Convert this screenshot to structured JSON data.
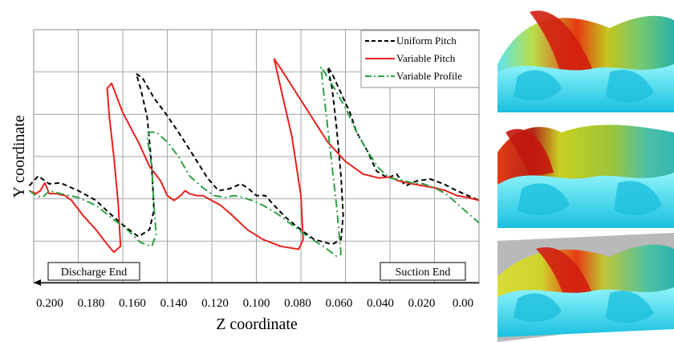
{
  "chart_data": {
    "type": "line",
    "xlabel": "Z coordinate",
    "ylabel": "Y coordinate",
    "xlim": [
      0.2,
      0.0
    ],
    "x_ticks": [
      "0.200",
      "0.180",
      "0.160",
      "0.140",
      "0.120",
      "0.100",
      "0.080",
      "0.060",
      "0.040",
      "0.020",
      "0.00"
    ],
    "y_ticks_visible": false,
    "grid": true,
    "legend": "top-right",
    "annotations": {
      "left": "Discharge End",
      "right": "Suction End"
    },
    "series": [
      {
        "name": "Uniform Pitch",
        "color": "#000000",
        "dash": "dashed",
        "points": [
          [
            0.202,
            0.0
          ],
          [
            0.198,
            0.1
          ],
          [
            0.193,
            0.02
          ],
          [
            0.188,
            0.03
          ],
          [
            0.18,
            -0.05
          ],
          [
            0.172,
            -0.15
          ],
          [
            0.166,
            -0.28
          ],
          [
            0.16,
            -0.4
          ],
          [
            0.153,
            -0.52
          ],
          [
            0.148,
            -0.45
          ],
          [
            0.146,
            -0.25
          ],
          [
            0.147,
            0.2
          ],
          [
            0.149,
            0.7
          ],
          [
            0.152,
            1.0
          ],
          [
            0.154,
            1.15
          ],
          [
            0.151,
            1.1
          ],
          [
            0.146,
            0.9
          ],
          [
            0.141,
            0.75
          ],
          [
            0.135,
            0.55
          ],
          [
            0.128,
            0.3
          ],
          [
            0.122,
            0.08
          ],
          [
            0.117,
            -0.05
          ],
          [
            0.112,
            -0.03
          ],
          [
            0.107,
            0.02
          ],
          [
            0.104,
            -0.02
          ],
          [
            0.1,
            -0.1
          ],
          [
            0.096,
            -0.1
          ],
          [
            0.092,
            -0.2
          ],
          [
            0.087,
            -0.32
          ],
          [
            0.08,
            -0.45
          ],
          [
            0.074,
            -0.55
          ],
          [
            0.066,
            -0.6
          ],
          [
            0.062,
            -0.55
          ],
          [
            0.061,
            -0.3
          ],
          [
            0.062,
            0.1
          ],
          [
            0.064,
            0.6
          ],
          [
            0.066,
            1.0
          ],
          [
            0.068,
            1.22
          ],
          [
            0.066,
            1.15
          ],
          [
            0.062,
            0.95
          ],
          [
            0.058,
            0.75
          ],
          [
            0.055,
            0.55
          ],
          [
            0.05,
            0.35
          ],
          [
            0.046,
            0.15
          ],
          [
            0.041,
            0.08
          ],
          [
            0.037,
            0.12
          ],
          [
            0.033,
            0.0
          ],
          [
            0.028,
            0.05
          ],
          [
            0.022,
            0.07
          ],
          [
            0.016,
            0.02
          ],
          [
            0.01,
            -0.05
          ],
          [
            0.005,
            -0.1
          ],
          [
            0.0,
            -0.15
          ]
        ]
      },
      {
        "name": "Variable Pitch",
        "color": "#e8211c",
        "dash": "solid",
        "points": [
          [
            0.202,
            -0.05
          ],
          [
            0.199,
            -0.08
          ],
          [
            0.197,
            -0.05
          ],
          [
            0.195,
            0.03
          ],
          [
            0.193,
            -0.08
          ],
          [
            0.19,
            -0.08
          ],
          [
            0.186,
            -0.1
          ],
          [
            0.183,
            -0.15
          ],
          [
            0.178,
            -0.3
          ],
          [
            0.172,
            -0.45
          ],
          [
            0.167,
            -0.6
          ],
          [
            0.164,
            -0.68
          ],
          [
            0.161,
            -0.62
          ],
          [
            0.162,
            -0.2
          ],
          [
            0.164,
            0.3
          ],
          [
            0.166,
            0.7
          ],
          [
            0.167,
            1.0
          ],
          [
            0.165,
            1.05
          ],
          [
            0.16,
            0.75
          ],
          [
            0.153,
            0.45
          ],
          [
            0.148,
            0.2
          ],
          [
            0.143,
            0.05
          ],
          [
            0.14,
            -0.1
          ],
          [
            0.137,
            -0.15
          ],
          [
            0.134,
            -0.1
          ],
          [
            0.132,
            -0.05
          ],
          [
            0.13,
            -0.08
          ],
          [
            0.127,
            -0.1
          ],
          [
            0.124,
            -0.1
          ],
          [
            0.12,
            -0.15
          ],
          [
            0.116,
            -0.2
          ],
          [
            0.111,
            -0.3
          ],
          [
            0.104,
            -0.45
          ],
          [
            0.097,
            -0.55
          ],
          [
            0.089,
            -0.62
          ],
          [
            0.081,
            -0.65
          ],
          [
            0.079,
            -0.55
          ],
          [
            0.08,
            -0.1
          ],
          [
            0.084,
            0.5
          ],
          [
            0.089,
            1.0
          ],
          [
            0.092,
            1.3
          ],
          [
            0.089,
            1.2
          ],
          [
            0.082,
            0.95
          ],
          [
            0.075,
            0.7
          ],
          [
            0.068,
            0.45
          ],
          [
            0.06,
            0.25
          ],
          [
            0.052,
            0.12
          ],
          [
            0.045,
            0.08
          ],
          [
            0.04,
            0.09
          ],
          [
            0.036,
            0.05
          ],
          [
            0.03,
            0.02
          ],
          [
            0.025,
            0.0
          ],
          [
            0.02,
            -0.02
          ],
          [
            0.015,
            -0.05
          ],
          [
            0.01,
            -0.1
          ],
          [
            0.005,
            -0.12
          ],
          [
            0.0,
            -0.15
          ]
        ]
      },
      {
        "name": "Variable Profile",
        "color": "#2ea043",
        "dash": "dashdot",
        "points": [
          [
            0.202,
            -0.05
          ],
          [
            0.199,
            -0.1
          ],
          [
            0.196,
            -0.12
          ],
          [
            0.193,
            -0.05
          ],
          [
            0.188,
            -0.08
          ],
          [
            0.18,
            -0.12
          ],
          [
            0.172,
            -0.2
          ],
          [
            0.165,
            -0.33
          ],
          [
            0.158,
            -0.45
          ],
          [
            0.152,
            -0.58
          ],
          [
            0.147,
            -0.62
          ],
          [
            0.145,
            -0.5
          ],
          [
            0.146,
            -0.2
          ],
          [
            0.147,
            0.2
          ],
          [
            0.149,
            0.5
          ],
          [
            0.148,
            0.55
          ],
          [
            0.145,
            0.55
          ],
          [
            0.14,
            0.45
          ],
          [
            0.135,
            0.3
          ],
          [
            0.13,
            0.1
          ],
          [
            0.124,
            -0.02
          ],
          [
            0.119,
            -0.1
          ],
          [
            0.114,
            -0.12
          ],
          [
            0.11,
            -0.1
          ],
          [
            0.106,
            -0.12
          ],
          [
            0.102,
            -0.15
          ],
          [
            0.097,
            -0.2
          ],
          [
            0.091,
            -0.28
          ],
          [
            0.084,
            -0.4
          ],
          [
            0.077,
            -0.52
          ],
          [
            0.07,
            -0.62
          ],
          [
            0.064,
            -0.72
          ],
          [
            0.062,
            -0.7
          ],
          [
            0.064,
            -0.2
          ],
          [
            0.067,
            0.4
          ],
          [
            0.07,
            1.0
          ],
          [
            0.071,
            1.22
          ],
          [
            0.069,
            1.15
          ],
          [
            0.065,
            1.0
          ],
          [
            0.06,
            0.8
          ],
          [
            0.055,
            0.55
          ],
          [
            0.05,
            0.35
          ],
          [
            0.045,
            0.18
          ],
          [
            0.04,
            0.08
          ],
          [
            0.035,
            0.06
          ],
          [
            0.03,
            0.03
          ],
          [
            0.025,
            0.02
          ],
          [
            0.02,
            -0.02
          ],
          [
            0.015,
            -0.08
          ],
          [
            0.01,
            -0.18
          ],
          [
            0.005,
            -0.28
          ],
          [
            0.0,
            -0.38
          ]
        ]
      }
    ]
  }
}
